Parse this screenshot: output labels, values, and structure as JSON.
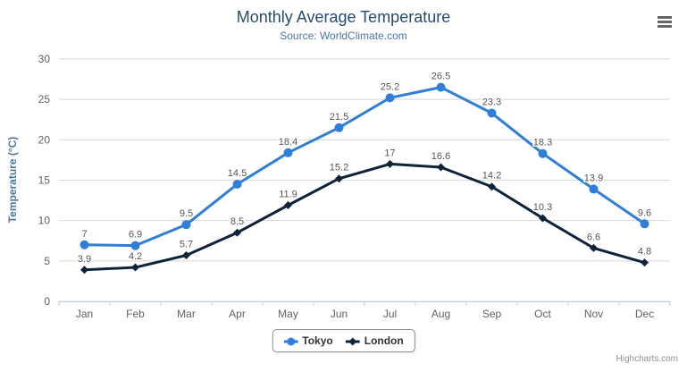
{
  "header": {
    "title": "Monthly Average Temperature",
    "subtitle": "Source: WorldClimate.com"
  },
  "export_menu": {
    "icon": "hamburger-menu-icon"
  },
  "credits": {
    "label": "Highcharts.com"
  },
  "colors": {
    "title": "#274b6d",
    "subtitle": "#4d759e",
    "axis_label": "#606060",
    "data_label": "#555555",
    "legend_text": "#333333",
    "credits": "#909090",
    "menu_icon": "#666666",
    "grid": "#d8d8d8",
    "axis_line": "#c0d0e0",
    "background": "#ffffff"
  },
  "chart_data": {
    "type": "line",
    "title": "Monthly Average Temperature",
    "subtitle": "Source: WorldClimate.com",
    "categories": [
      "Jan",
      "Feb",
      "Mar",
      "Apr",
      "May",
      "Jun",
      "Jul",
      "Aug",
      "Sep",
      "Oct",
      "Nov",
      "Dec"
    ],
    "series": [
      {
        "name": "Tokyo",
        "color": "#2f7ed8",
        "marker": "circle",
        "values": [
          7,
          6.9,
          9.5,
          14.5,
          18.4,
          21.5,
          25.2,
          26.5,
          23.3,
          18.3,
          13.9,
          9.6
        ]
      },
      {
        "name": "London",
        "color": "#0d233a",
        "marker": "diamond",
        "values": [
          3.9,
          4.2,
          5.7,
          8.5,
          11.9,
          15.2,
          17,
          16.6,
          14.2,
          10.3,
          6.6,
          4.8
        ]
      }
    ],
    "xlabel": "",
    "ylabel": "Temperature (°C)",
    "ylim": [
      0,
      30
    ],
    "ytick_step": 5,
    "yticks": [
      0,
      5,
      10,
      15,
      20,
      25,
      30
    ],
    "grid": true,
    "data_labels": true,
    "legend_position": "bottom"
  }
}
